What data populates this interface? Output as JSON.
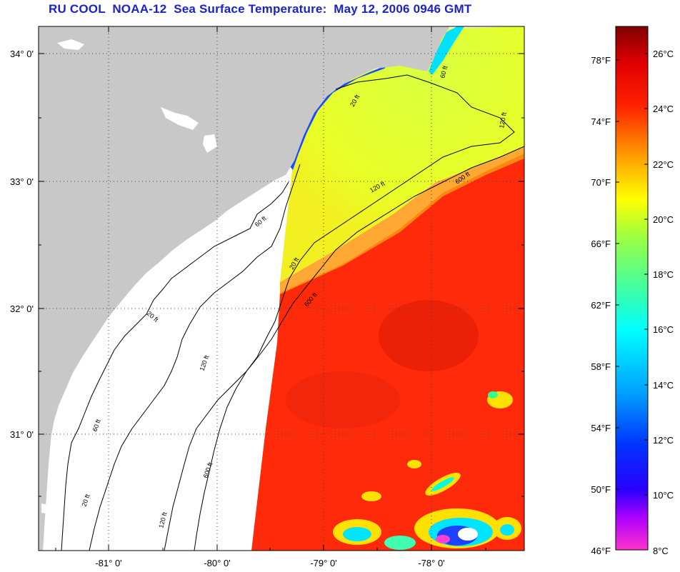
{
  "title": "RU COOL  NOAA-12  Sea Surface Temperature:  May 12, 2006 0946 GMT",
  "map": {
    "lat_labels": [
      "34° 0'",
      "33° 0'",
      "32° 0'",
      "31° 0'"
    ],
    "lon_labels": [
      "-81° 0'",
      "-80° 0'",
      "-79° 0'",
      "-78° 0'"
    ],
    "lat_values": [
      34,
      33,
      32,
      31
    ],
    "lon_values": [
      -81,
      -80,
      -79,
      -78
    ],
    "contour_labels": [
      "20 ft",
      "60 ft",
      "120 ft",
      "600 ft",
      "20 ft",
      "60 ft",
      "120 ft",
      "600 ft",
      "20 ft",
      "60 ft",
      "120 ft",
      "600 ft",
      "120 ft",
      "20 ft"
    ]
  },
  "colorbar": {
    "fahrenheit_labels": [
      "78°F",
      "74°F",
      "70°F",
      "66°F",
      "62°F",
      "58°F",
      "54°F",
      "50°F",
      "46°F"
    ],
    "celsius_labels": [
      "26°C",
      "24°C",
      "22°C",
      "20°C",
      "18°C",
      "16°C",
      "14°C",
      "12°C",
      "10°C",
      "8°C"
    ],
    "colors": {
      "max": "#800000",
      "red": "#ff1a00",
      "orange": "#ff8c00",
      "yellow": "#f5f500",
      "green": "#7fff5f",
      "cyan": "#00ffff",
      "blue": "#0033ff",
      "purple": "#8a00ff",
      "magenta": "#ff33cc"
    }
  },
  "colors": {
    "land": "#c8c8c8",
    "water_nodata": "#ffffff",
    "shelf_yellow": "#e0ff30",
    "gulfstream_red": "#ff2a0a",
    "title_blue": "#1a22cc"
  }
}
